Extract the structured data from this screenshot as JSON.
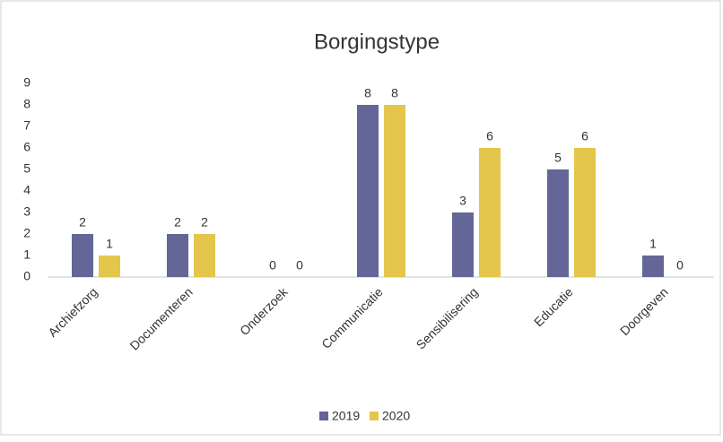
{
  "chart_data": {
    "type": "bar",
    "title": "Borgingstype",
    "categories": [
      "Archiefzorg",
      "Documenteren",
      "Onderzoek",
      "Communicatie",
      "Sensibilisering",
      "Educatie",
      "Doorgeven"
    ],
    "series": [
      {
        "name": "2019",
        "color": "#636696",
        "values": [
          2,
          2,
          0,
          8,
          3,
          5,
          1
        ]
      },
      {
        "name": "2020",
        "color": "#e3c64b",
        "values": [
          1,
          2,
          0,
          8,
          6,
          6,
          0
        ]
      }
    ],
    "ylim": [
      0,
      9
    ],
    "yticks": [
      0,
      1,
      2,
      3,
      4,
      5,
      6,
      7,
      8,
      9
    ],
    "grid": false,
    "legend": "bottom"
  }
}
